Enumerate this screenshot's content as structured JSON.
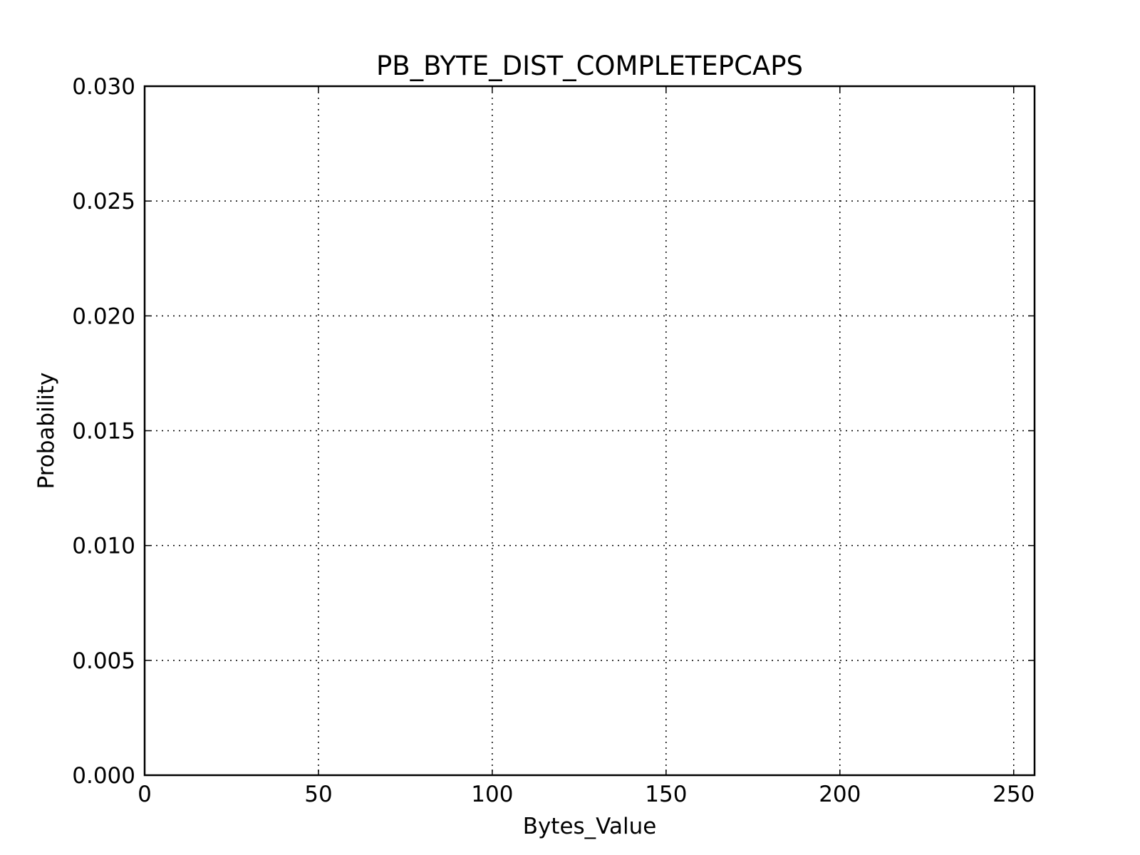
{
  "chart_data": {
    "type": "bar",
    "title": "PB_BYTE_DIST_COMPLETEPCAPS",
    "xlabel": "Bytes_Value",
    "ylabel": "Probability",
    "xlim": [
      0,
      256
    ],
    "ylim": [
      0,
      0.03
    ],
    "xticks": [
      0,
      50,
      100,
      150,
      200,
      250
    ],
    "xtick_labels": [
      "0",
      "50",
      "100",
      "150",
      "200",
      "250"
    ],
    "yticks": [
      0,
      0.005,
      0.01,
      0.015,
      0.02,
      0.025,
      0.03
    ],
    "ytick_labels": [
      "0.000",
      "0.005",
      "0.010",
      "0.015",
      "0.020",
      "0.025",
      "0.030"
    ],
    "grid": true,
    "series": []
  }
}
